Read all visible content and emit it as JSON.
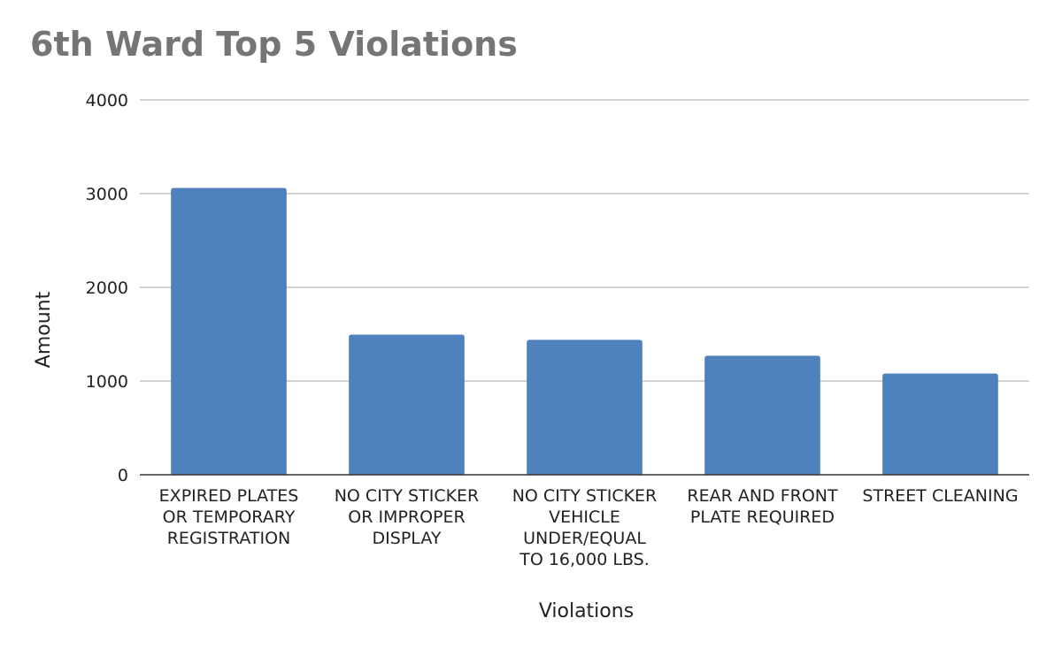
{
  "chart_data": {
    "type": "bar",
    "title": "6th Ward Top 5 Violations",
    "xlabel": "Violations",
    "ylabel": "Amount",
    "ylim": [
      0,
      4000
    ],
    "yticks": [
      "0",
      "1000",
      "2000",
      "3000",
      "4000"
    ],
    "grid": true,
    "legend": "none",
    "bar_color": "#4f81bd",
    "categories": [
      [
        "EXPIRED PLATES",
        "OR TEMPORARY",
        "REGISTRATION"
      ],
      [
        "NO CITY STICKER",
        "OR IMPROPER",
        "DISPLAY"
      ],
      [
        "NO CITY STICKER",
        "VEHICLE",
        "UNDER/EQUAL",
        "TO 16,000 LBS."
      ],
      [
        "REAR AND FRONT",
        "PLATE REQUIRED"
      ],
      [
        "STREET CLEANING"
      ]
    ],
    "values": [
      3060,
      1495,
      1440,
      1270,
      1080
    ]
  }
}
